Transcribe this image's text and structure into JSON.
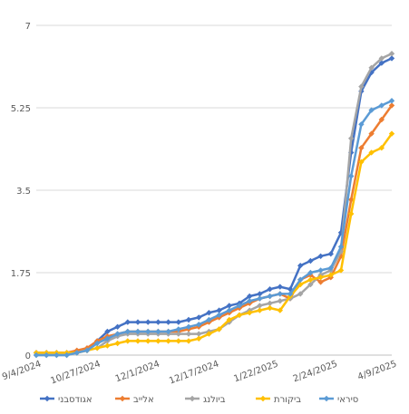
{
  "chart_data": {
    "type": "line",
    "title": "",
    "xlabel": "",
    "ylabel": "",
    "ylim": [
      0,
      7
    ],
    "yticks": [
      "0",
      "1.75",
      "3.5",
      "5.25",
      "7"
    ],
    "xticks": [
      "9/4/2024",
      "10/27/2024",
      "12/1/2024",
      "12/17/2024",
      "1/22/2025",
      "2/24/2025",
      "4/9/2025"
    ],
    "grid": "horizontal",
    "legend_position": "bottom",
    "series": [
      {
        "name": "אגודסבני",
        "color": "#4472C4",
        "marker": "diamond",
        "values": [
          0.05,
          0.05,
          0.05,
          0.05,
          0.05,
          0.1,
          0.3,
          0.5,
          0.6,
          0.7,
          0.7,
          0.7,
          0.7,
          0.7,
          0.7,
          0.75,
          0.8,
          0.9,
          0.95,
          1.05,
          1.1,
          1.25,
          1.3,
          1.4,
          1.45,
          1.4,
          1.9,
          2.0,
          2.1,
          2.15,
          2.6,
          4.3,
          5.6,
          6.0,
          6.2,
          6.3
        ]
      },
      {
        "name": "אלייב",
        "color": "#ED7D31",
        "marker": "diamond",
        "values": [
          0.05,
          0.05,
          0.05,
          0.05,
          0.1,
          0.15,
          0.3,
          0.4,
          0.45,
          0.5,
          0.5,
          0.5,
          0.5,
          0.5,
          0.5,
          0.55,
          0.6,
          0.7,
          0.8,
          0.9,
          1.0,
          1.1,
          1.2,
          1.25,
          1.3,
          1.2,
          1.6,
          1.7,
          1.55,
          1.65,
          2.1,
          3.3,
          4.4,
          4.7,
          5.0,
          5.3
        ]
      },
      {
        "name": "ביולנג",
        "color": "#A5A5A5",
        "marker": "diamond",
        "values": [
          0.0,
          0.0,
          0.0,
          0.0,
          0.05,
          0.1,
          0.15,
          0.3,
          0.4,
          0.45,
          0.45,
          0.45,
          0.45,
          0.45,
          0.45,
          0.45,
          0.45,
          0.5,
          0.55,
          0.7,
          0.85,
          0.95,
          1.05,
          1.1,
          1.15,
          1.2,
          1.3,
          1.5,
          1.7,
          1.8,
          2.2,
          4.6,
          5.7,
          6.1,
          6.3,
          6.4
        ]
      },
      {
        "name": "ביקורת",
        "color": "#FFC000",
        "marker": "diamond",
        "values": [
          0.05,
          0.05,
          0.05,
          0.05,
          0.05,
          0.1,
          0.15,
          0.2,
          0.25,
          0.3,
          0.3,
          0.3,
          0.3,
          0.3,
          0.3,
          0.3,
          0.35,
          0.45,
          0.55,
          0.75,
          0.85,
          0.9,
          0.95,
          1.0,
          0.95,
          1.25,
          1.5,
          1.6,
          1.65,
          1.7,
          1.8,
          3.0,
          4.1,
          4.3,
          4.4,
          4.7
        ]
      },
      {
        "name": "סיראי",
        "color": "#5B9BD5",
        "marker": "diamond",
        "values": [
          0.0,
          0.0,
          0.0,
          0.0,
          0.05,
          0.1,
          0.25,
          0.35,
          0.45,
          0.5,
          0.5,
          0.5,
          0.5,
          0.5,
          0.55,
          0.6,
          0.65,
          0.75,
          0.85,
          0.95,
          1.05,
          1.15,
          1.2,
          1.25,
          1.3,
          1.3,
          1.6,
          1.75,
          1.8,
          1.85,
          2.3,
          3.8,
          4.9,
          5.2,
          5.3,
          5.4
        ]
      }
    ]
  }
}
